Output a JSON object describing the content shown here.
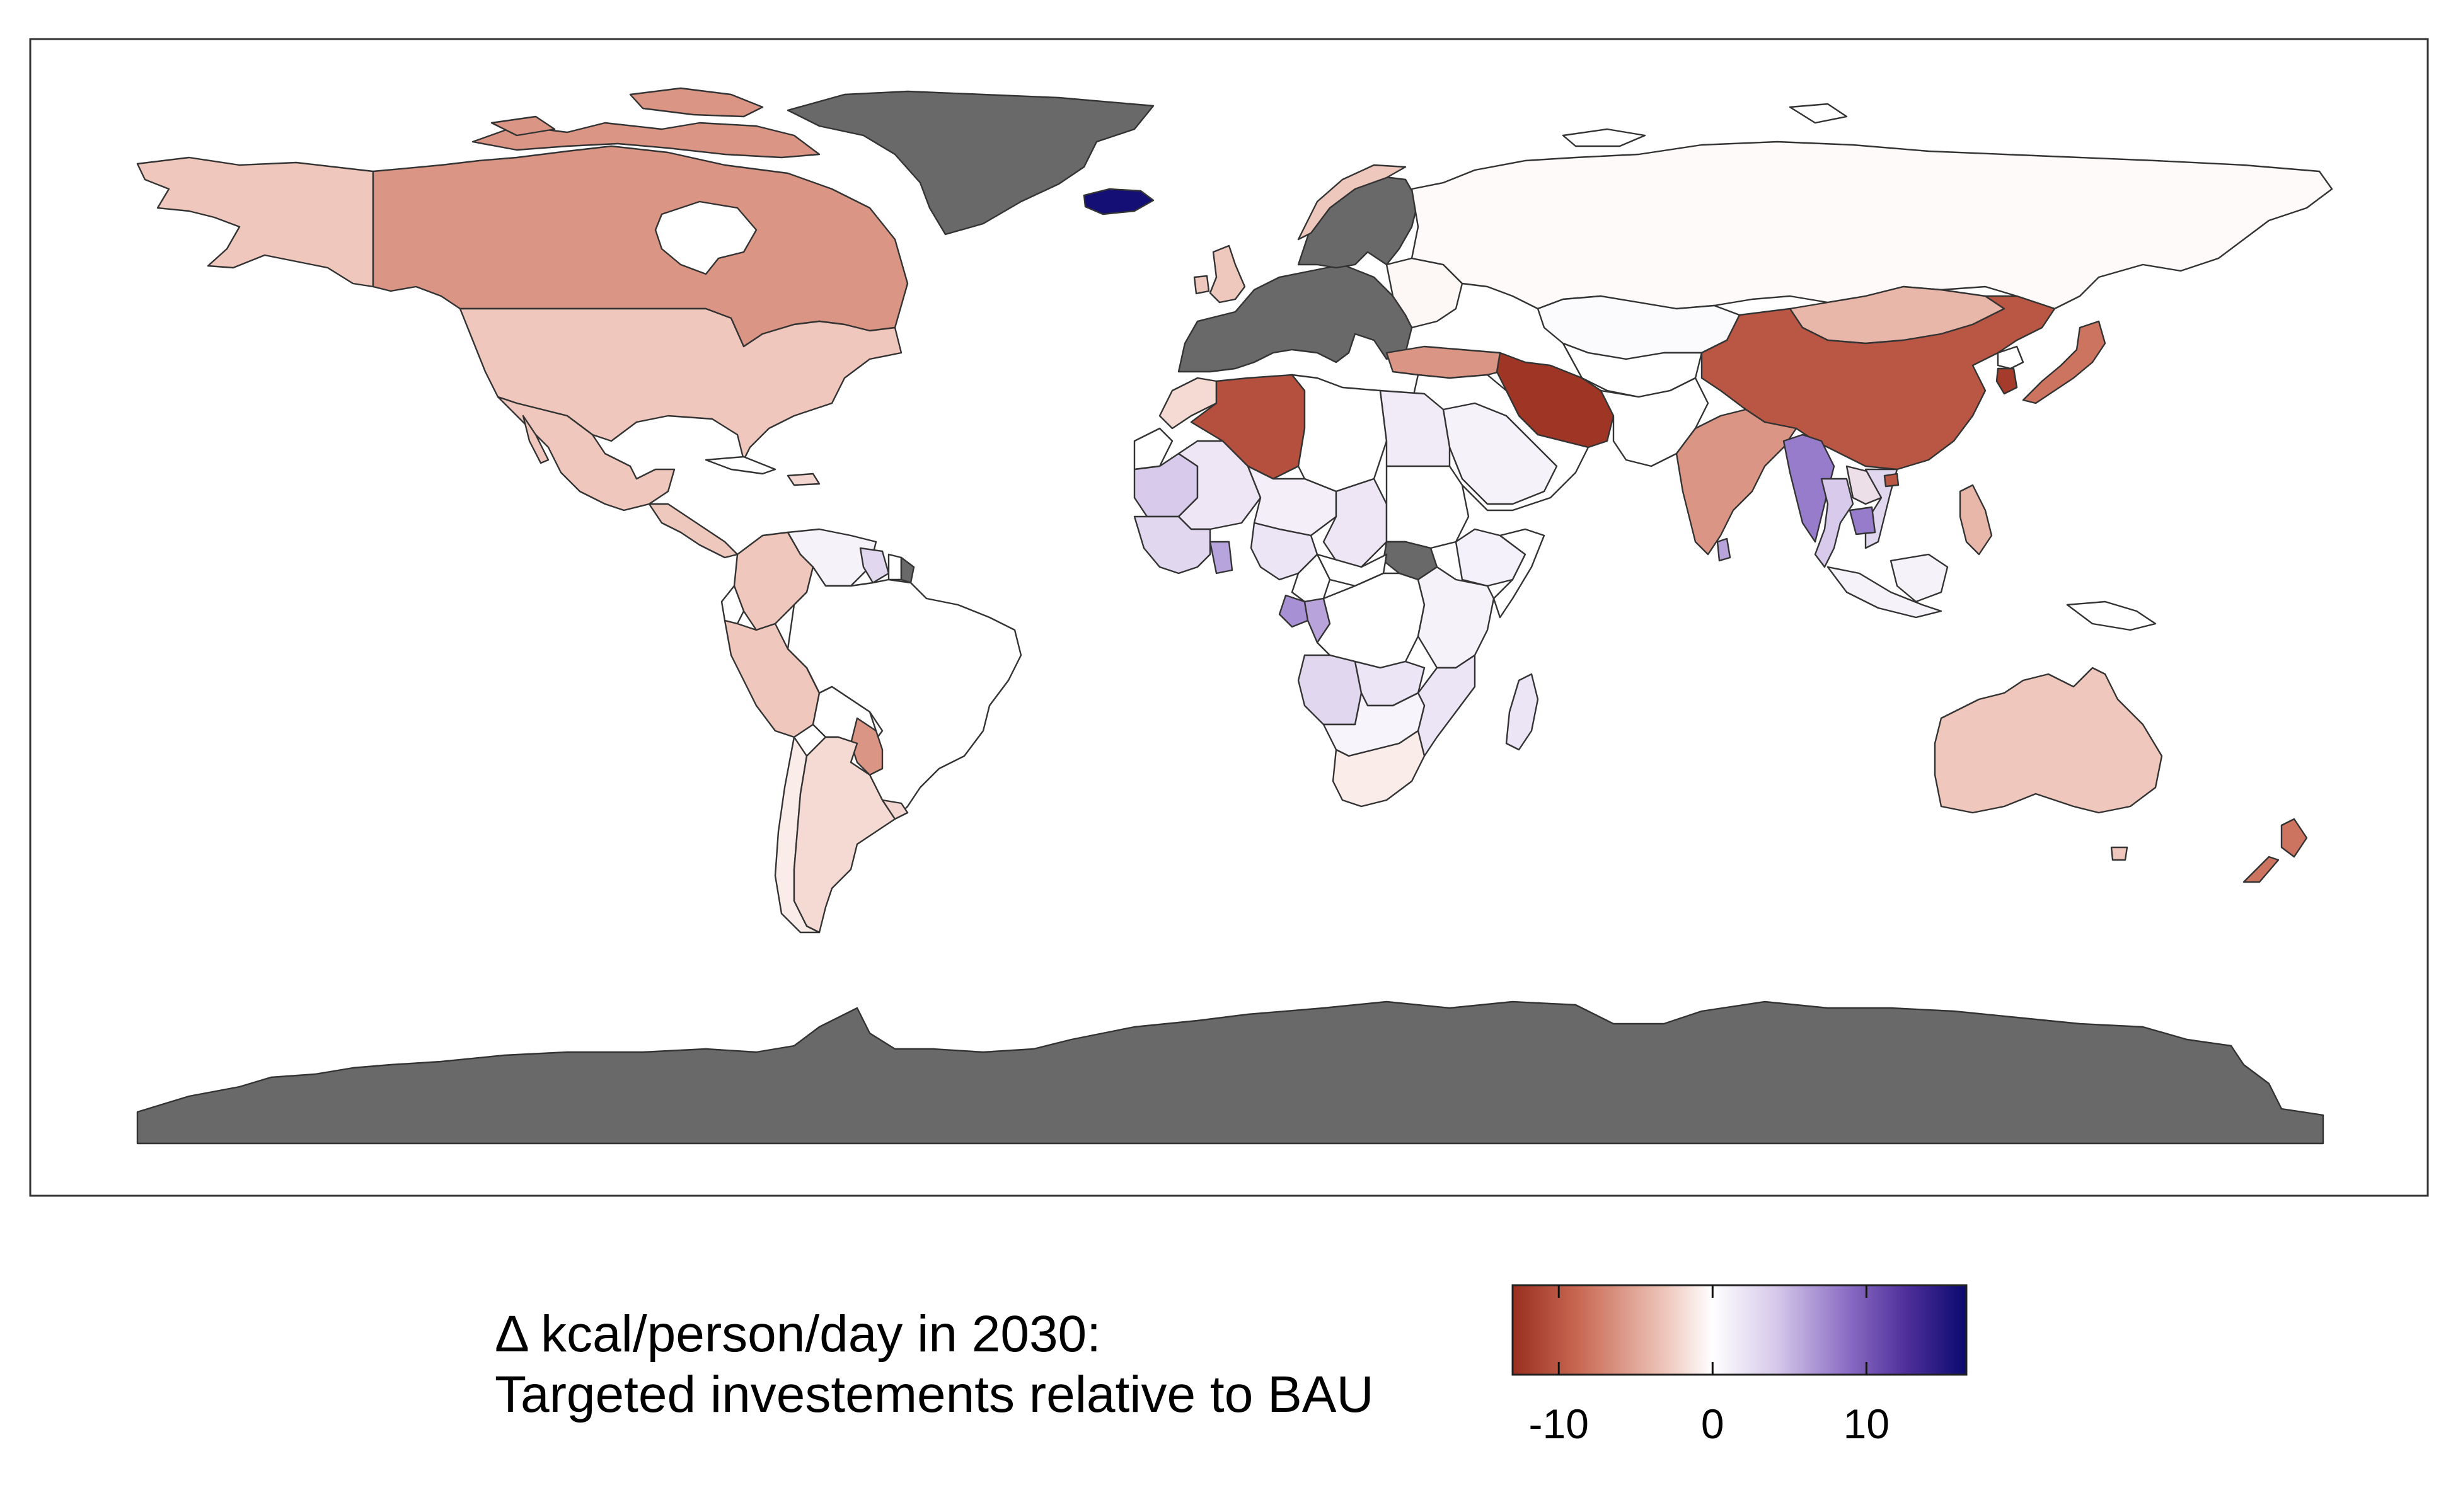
{
  "legend": {
    "title_line1": "Δ kcal/person/day in 2030:",
    "title_line2": "Targeted investements relative to BAU",
    "ticks": [
      {
        "label": "-10",
        "value": -10
      },
      {
        "label": "0",
        "value": 0
      },
      {
        "label": "10",
        "value": 10
      }
    ],
    "range": [
      -13,
      16.5
    ],
    "gradient": [
      "#9a2f1f",
      "#c96a55",
      "#efc8bd",
      "#ffffff",
      "#d6c9ea",
      "#8a6cc4",
      "#4d2e99",
      "#0a0a6e"
    ]
  },
  "colors": {
    "no_data": "#696969",
    "border": "#333333"
  },
  "map_data": {
    "type": "choropleth",
    "variable": "Δ kcal/person/day in 2030",
    "no_data_regions": [
      "Greenland",
      "Europe",
      "Antarctica",
      "South Sudan",
      "French Guiana"
    ],
    "regions": [
      {
        "name": "Iceland",
        "value": 16
      },
      {
        "name": "Iran",
        "value": -12.5
      },
      {
        "name": "South Korea",
        "value": -12
      },
      {
        "name": "Algeria",
        "value": -10.5
      },
      {
        "name": "China",
        "value": -10
      },
      {
        "name": "Japan",
        "value": -8
      },
      {
        "name": "New Zealand",
        "value": -8
      },
      {
        "name": "Canada",
        "value": -6
      },
      {
        "name": "India",
        "value": -6
      },
      {
        "name": "Turkey",
        "value": -6
      },
      {
        "name": "Mongolia",
        "value": -4
      },
      {
        "name": "Paraguay",
        "value": -6
      },
      {
        "name": "Colombia",
        "value": -3
      },
      {
        "name": "Peru",
        "value": -3
      },
      {
        "name": "Philippines",
        "value": -4
      },
      {
        "name": "United States",
        "value": -3
      },
      {
        "name": "Mexico",
        "value": -3
      },
      {
        "name": "Alaska",
        "value": -3
      },
      {
        "name": "Australia",
        "value": -3
      },
      {
        "name": "Argentina",
        "value": -2
      },
      {
        "name": "Chile",
        "value": -1
      },
      {
        "name": "Morocco",
        "value": -2
      },
      {
        "name": "Russia",
        "value": -0.3
      },
      {
        "name": "Brazil",
        "value": 0
      },
      {
        "name": "Kazakhstan",
        "value": 0.2
      },
      {
        "name": "Myanmar",
        "value": 8
      },
      {
        "name": "Cambodia",
        "value": 8
      },
      {
        "name": "Thailand",
        "value": 4
      },
      {
        "name": "Vietnam",
        "value": 3
      },
      {
        "name": "Mauritania",
        "value": 4
      },
      {
        "name": "Gabon",
        "value": 7
      },
      {
        "name": "Congo",
        "value": 6
      },
      {
        "name": "Angola",
        "value": 3
      },
      {
        "name": "Zambia",
        "value": 2
      },
      {
        "name": "Madagascar",
        "value": 2
      },
      {
        "name": "Sri Lanka",
        "value": 6
      },
      {
        "name": "Egypt",
        "value": 1.5
      },
      {
        "name": "Saudi Arabia",
        "value": 1
      },
      {
        "name": "Venezuela",
        "value": 1
      },
      {
        "name": "Guyana",
        "value": 3
      },
      {
        "name": "Indonesia",
        "value": 1
      },
      {
        "name": "South Africa",
        "value": -1
      },
      {
        "name": "Nigeria",
        "value": 2
      },
      {
        "name": "Sahel",
        "value": 1.5
      },
      {
        "name": "West Africa coast",
        "value": 3
      },
      {
        "name": "East Africa",
        "value": 1
      },
      {
        "name": "Mozambique",
        "value": 2
      }
    ]
  }
}
